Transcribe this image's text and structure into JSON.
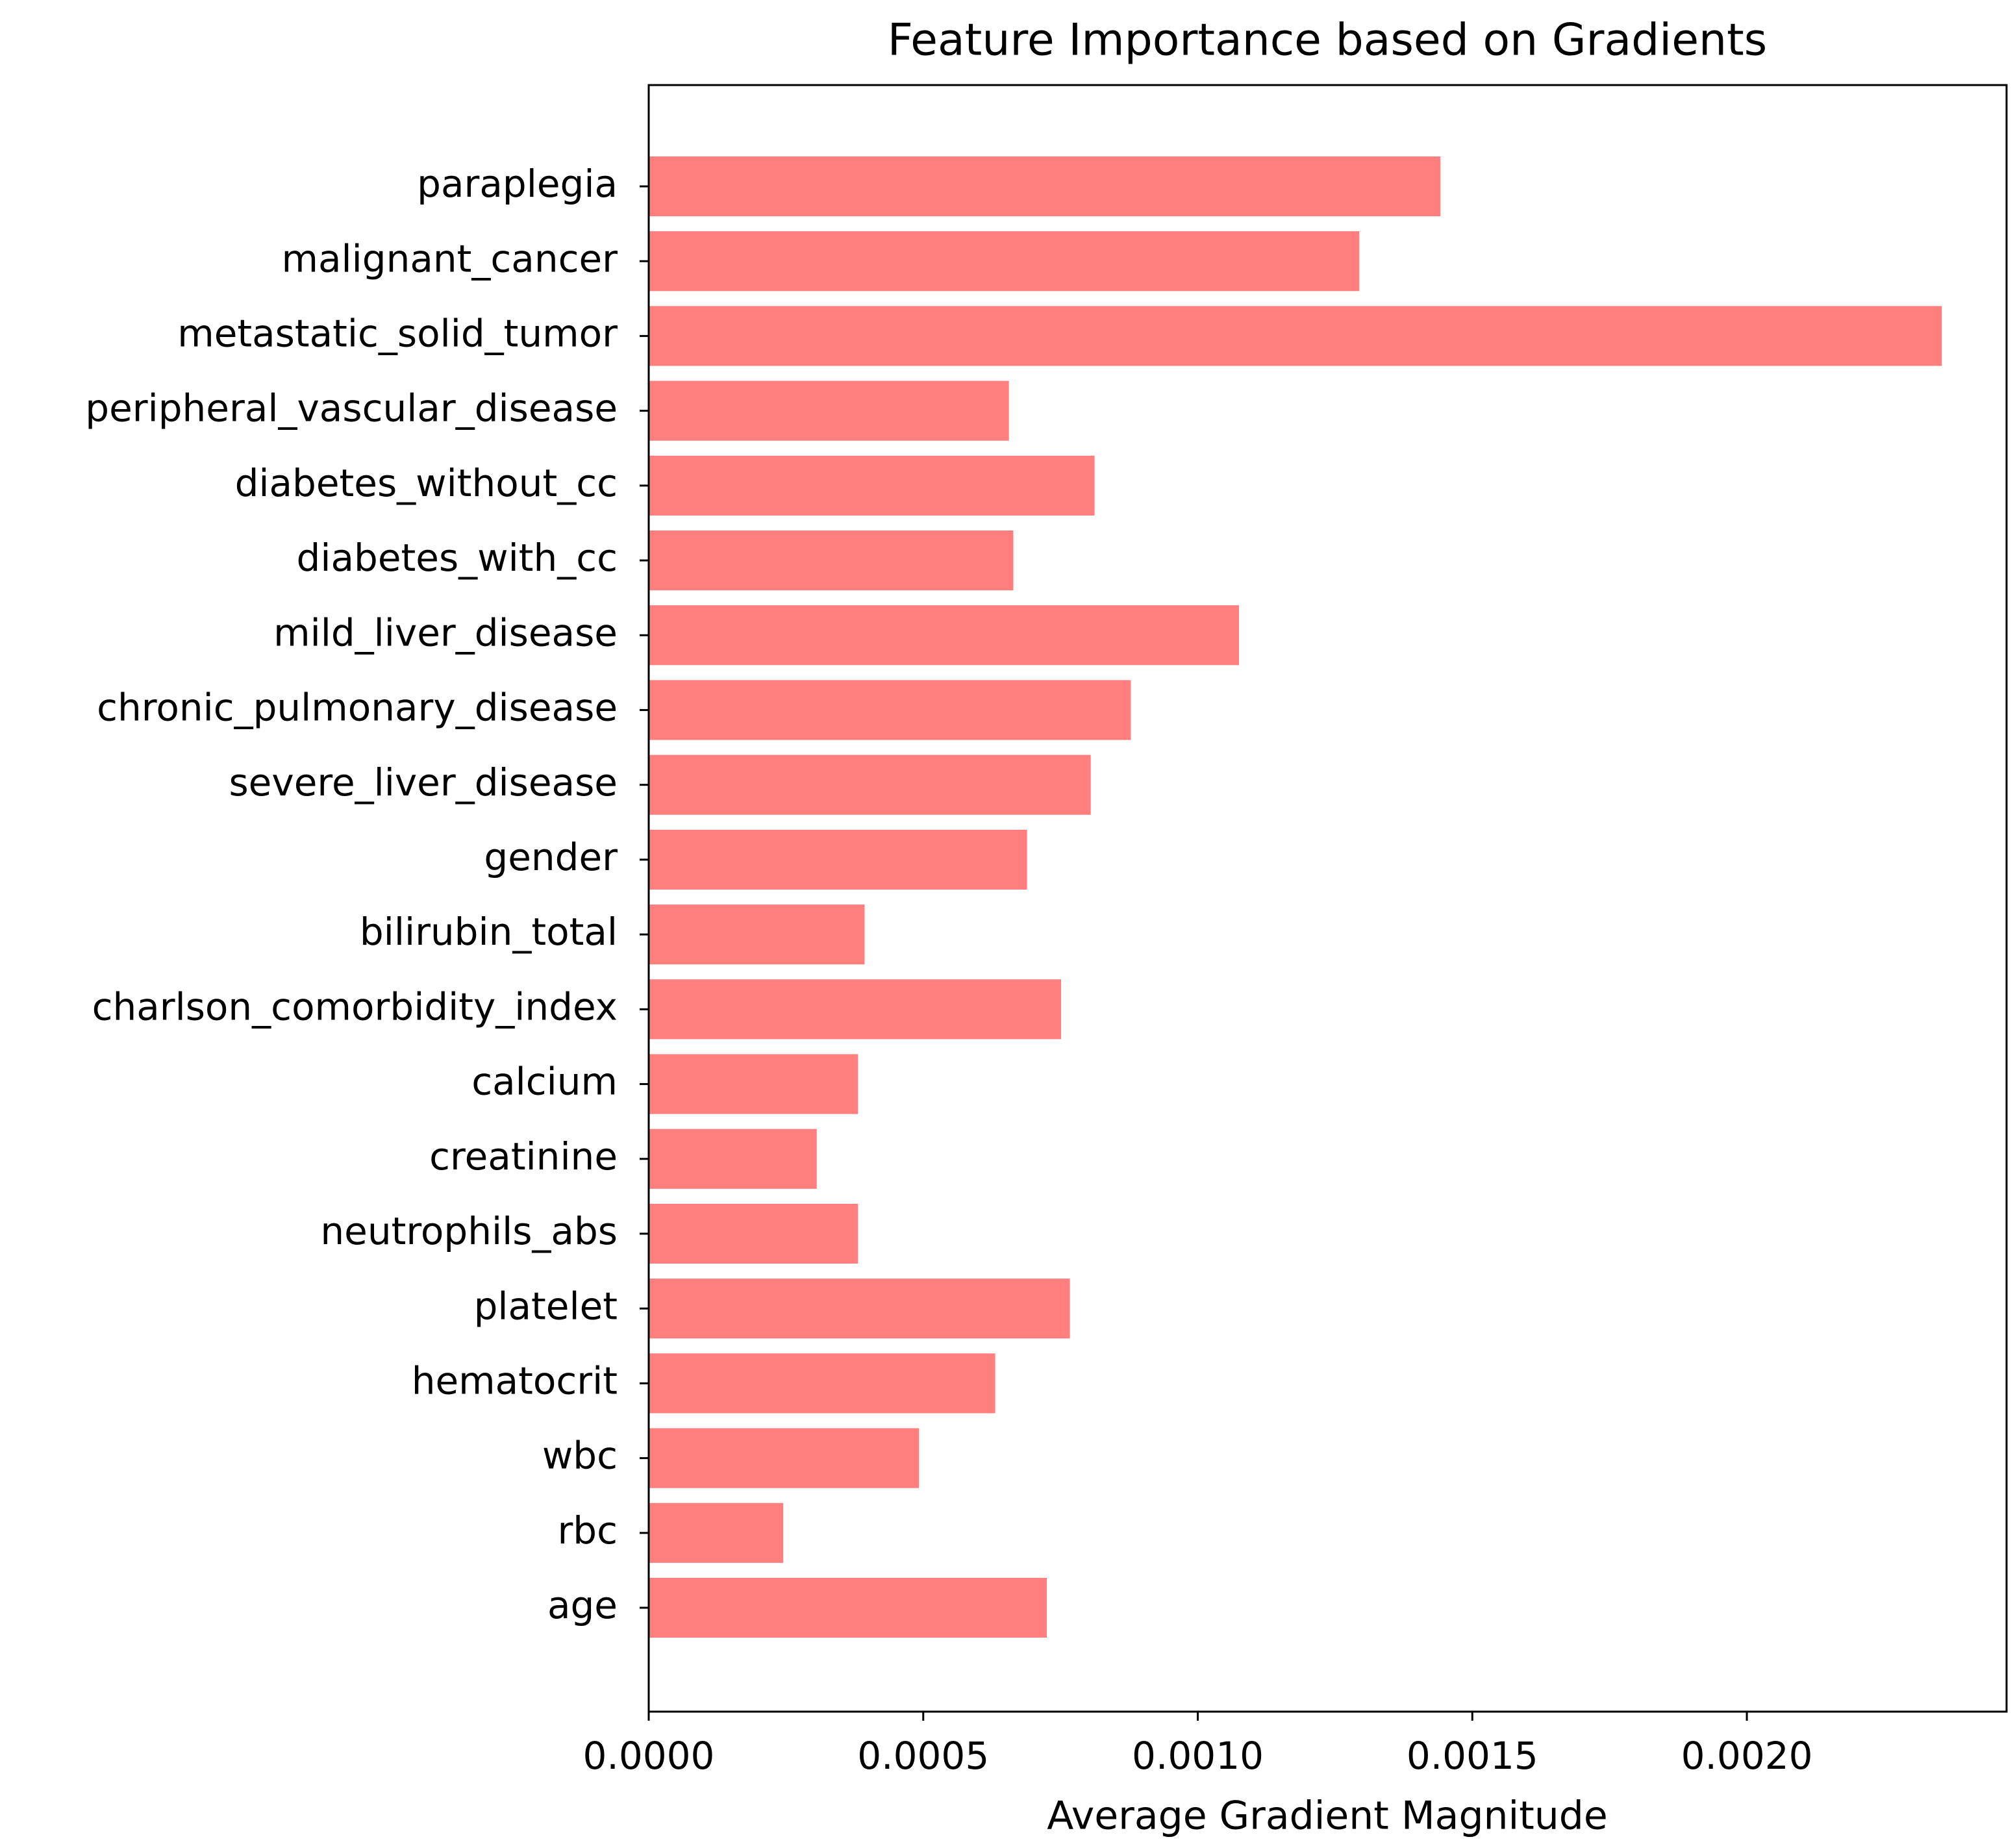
{
  "chart_data": {
    "type": "barh",
    "title": "Feature Importance based on Gradients",
    "x_label": "Average Gradient Magnitude",
    "categories": [
      "paraplegia",
      "malignant_cancer",
      "metastatic_solid_tumor",
      "peripheral_vascular_disease",
      "diabetes_without_cc",
      "diabetes_with_cc",
      "mild_liver_disease",
      "chronic_pulmonary_disease",
      "severe_liver_disease",
      "gender",
      "bilirubin_total",
      "charlson_comorbidity_index",
      "calcium",
      "creatinine",
      "neutrophils_abs",
      "platelet",
      "hematocrit",
      "wbc",
      "rbc",
      "age"
    ],
    "values": [
      0.001442,
      0.001294,
      0.002355,
      0.000656,
      0.000812,
      0.000664,
      0.001075,
      0.000878,
      0.000805,
      0.000689,
      0.000393,
      0.000751,
      0.000381,
      0.000306,
      0.000381,
      0.000767,
      0.000631,
      0.000492,
      0.000245,
      0.000725
    ],
    "color": "#ff7f7f",
    "xlim": [
      0,
      0.002473
    ],
    "xticks": [
      {
        "value": 0,
        "label": "0.0000"
      },
      {
        "value": 0.0005,
        "label": "0.0005"
      },
      {
        "value": 0.001,
        "label": "0.0010"
      },
      {
        "value": 0.0015,
        "label": "0.0015"
      },
      {
        "value": 0.002,
        "label": "0.0020"
      }
    ],
    "grid": false
  }
}
